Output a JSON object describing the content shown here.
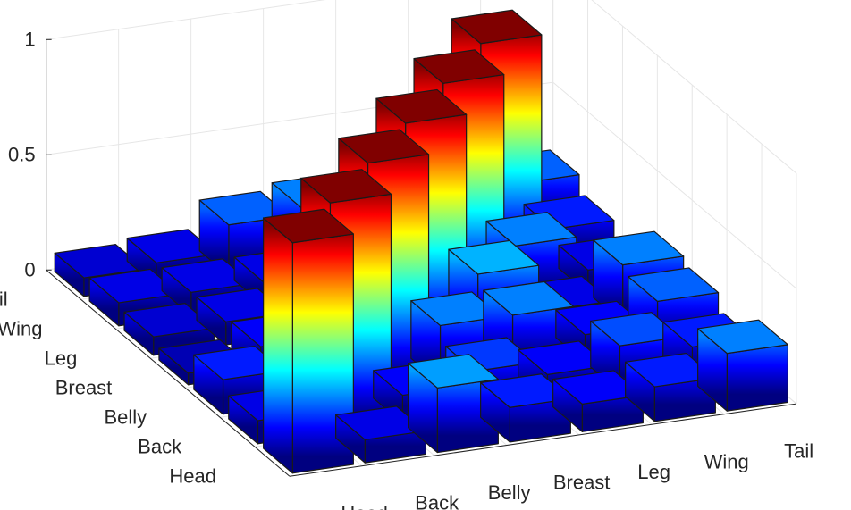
{
  "chart_data": {
    "type": "bar3d",
    "title": "",
    "xlabel": "",
    "ylabel": "",
    "zlabel": "",
    "categories": [
      "Head",
      "Back",
      "Belly",
      "Breast",
      "Leg",
      "Wing",
      "Tail"
    ],
    "zlim": [
      0,
      1
    ],
    "z_ticks": [
      "0",
      "0.5",
      "1"
    ],
    "grid": true,
    "colormap": "jet",
    "matrix_note_rows_are_x_columns_are_y": true,
    "values": [
      [
        1.0,
        0.1,
        0.15,
        0.05,
        0.08,
        0.1,
        0.08
      ],
      [
        0.1,
        1.0,
        0.2,
        0.12,
        0.1,
        0.1,
        0.1
      ],
      [
        0.28,
        0.12,
        1.0,
        0.25,
        0.25,
        0.1,
        0.22
      ],
      [
        0.15,
        0.18,
        0.25,
        1.0,
        0.3,
        0.12,
        0.25
      ],
      [
        0.12,
        0.12,
        0.25,
        0.3,
        1.0,
        0.15,
        0.2
      ],
      [
        0.15,
        0.2,
        0.12,
        0.1,
        0.25,
        1.0,
        0.15
      ],
      [
        0.25,
        0.15,
        0.22,
        0.25,
        0.1,
        0.15,
        0.22
      ]
    ]
  }
}
